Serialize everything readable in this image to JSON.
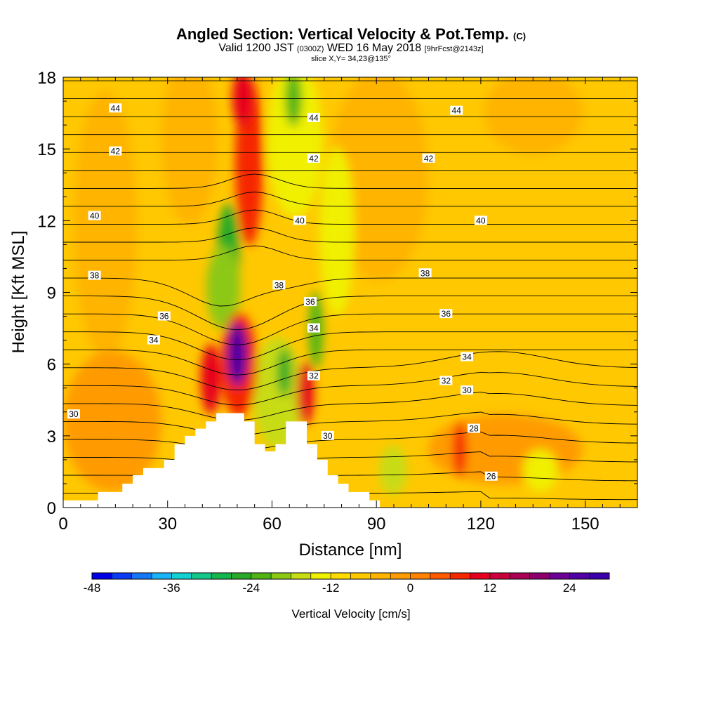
{
  "header": {
    "title": "Angled Section: Vertical Velocity & Pot.Temp.",
    "title_suffix": "(C)",
    "valid_prefix": "Valid 1200 JST",
    "valid_utc": "(0300Z)",
    "valid_date": "WED 16 May 2018",
    "forecast_info": "[9hrFcst@2143z]",
    "slice_info": "slice X,Y= 34,23@135°"
  },
  "chart_data": {
    "type": "heatmap",
    "xlabel": "Distance [nm]",
    "ylabel": "Height [Kft MSL]",
    "xlim": [
      0,
      165
    ],
    "ylim": [
      0,
      18
    ],
    "x_ticks": [
      0,
      30,
      60,
      90,
      120,
      150
    ],
    "y_ticks": [
      0,
      3,
      6,
      9,
      12,
      15,
      18
    ],
    "background_field": "Vertical Velocity [cm/s]",
    "terrain_profile": [
      [
        0,
        0.3
      ],
      [
        10,
        0.3
      ],
      [
        10,
        0.65
      ],
      [
        17,
        0.65
      ],
      [
        17,
        1.0
      ],
      [
        20,
        1.0
      ],
      [
        20,
        1.35
      ],
      [
        23,
        1.35
      ],
      [
        23,
        1.65
      ],
      [
        29,
        1.65
      ],
      [
        29,
        2.0
      ],
      [
        32,
        2.0
      ],
      [
        32,
        2.65
      ],
      [
        35,
        2.65
      ],
      [
        35,
        3.0
      ],
      [
        38,
        3.0
      ],
      [
        38,
        3.3
      ],
      [
        41,
        3.3
      ],
      [
        41,
        3.6
      ],
      [
        44,
        3.6
      ],
      [
        44,
        3.95
      ],
      [
        52,
        3.95
      ],
      [
        52,
        3.6
      ],
      [
        55,
        3.6
      ],
      [
        55,
        2.65
      ],
      [
        58,
        2.65
      ],
      [
        58,
        2.35
      ],
      [
        61,
        2.35
      ],
      [
        61,
        2.65
      ],
      [
        64,
        2.65
      ],
      [
        64,
        3.6
      ],
      [
        70,
        3.6
      ],
      [
        70,
        2.65
      ],
      [
        73,
        2.65
      ],
      [
        73,
        2.0
      ],
      [
        76,
        2.0
      ],
      [
        76,
        1.35
      ],
      [
        79,
        1.35
      ],
      [
        79,
        1.0
      ],
      [
        82,
        1.0
      ],
      [
        82,
        0.65
      ],
      [
        88,
        0.65
      ],
      [
        88,
        0.3
      ],
      [
        91,
        0.3
      ],
      [
        91,
        0
      ],
      [
        165,
        0
      ]
    ],
    "colorbar": {
      "title": "Vertical Velocity [cm/s]",
      "min": -48,
      "max": 30,
      "step": 3,
      "tick_labels": [
        -48,
        -36,
        -24,
        -12,
        0,
        12,
        24
      ],
      "colors": [
        "#0000e6",
        "#0a3cf5",
        "#1478f5",
        "#19b4f5",
        "#14d2d2",
        "#14c88c",
        "#14b450",
        "#28aa28",
        "#50b414",
        "#8cc814",
        "#c8dc14",
        "#f0f000",
        "#ffdc00",
        "#ffc800",
        "#ffb400",
        "#ff9b00",
        "#ff8200",
        "#ff5a00",
        "#f52800",
        "#e6001e",
        "#c8003c",
        "#aa0055",
        "#8c006e",
        "#6e0096",
        "#5000a0",
        "#3c00aa"
      ]
    },
    "theta_contours": [
      {
        "value": 44,
        "labels": [
          [
            15,
            16.7
          ],
          [
            72,
            16.3
          ],
          [
            113,
            16.6
          ]
        ]
      },
      {
        "value": 42,
        "labels": [
          [
            15,
            14.9
          ],
          [
            72,
            14.6
          ],
          [
            105,
            14.6
          ]
        ]
      },
      {
        "value": 40,
        "labels": [
          [
            9,
            12.2
          ],
          [
            68,
            12.0
          ],
          [
            120,
            12.0
          ]
        ]
      },
      {
        "value": 38,
        "labels": [
          [
            9,
            9.7
          ],
          [
            62,
            9.3
          ],
          [
            104,
            9.8
          ]
        ]
      },
      {
        "value": 36,
        "labels": [
          [
            29,
            8.0
          ],
          [
            71,
            8.6
          ],
          [
            110,
            8.1
          ]
        ]
      },
      {
        "value": 34,
        "labels": [
          [
            26,
            7.0
          ],
          [
            72,
            7.5
          ],
          [
            116,
            6.3
          ]
        ]
      },
      {
        "value": 32,
        "labels": [
          [
            72,
            5.5
          ],
          [
            110,
            5.3
          ]
        ]
      },
      {
        "value": 30,
        "labels": [
          [
            3,
            3.9
          ],
          [
            76,
            3.0
          ],
          [
            116,
            4.9
          ]
        ]
      },
      {
        "value": 28,
        "labels": [
          [
            118,
            3.3
          ]
        ]
      },
      {
        "value": 26,
        "labels": [
          [
            123,
            1.3
          ]
        ]
      }
    ]
  }
}
